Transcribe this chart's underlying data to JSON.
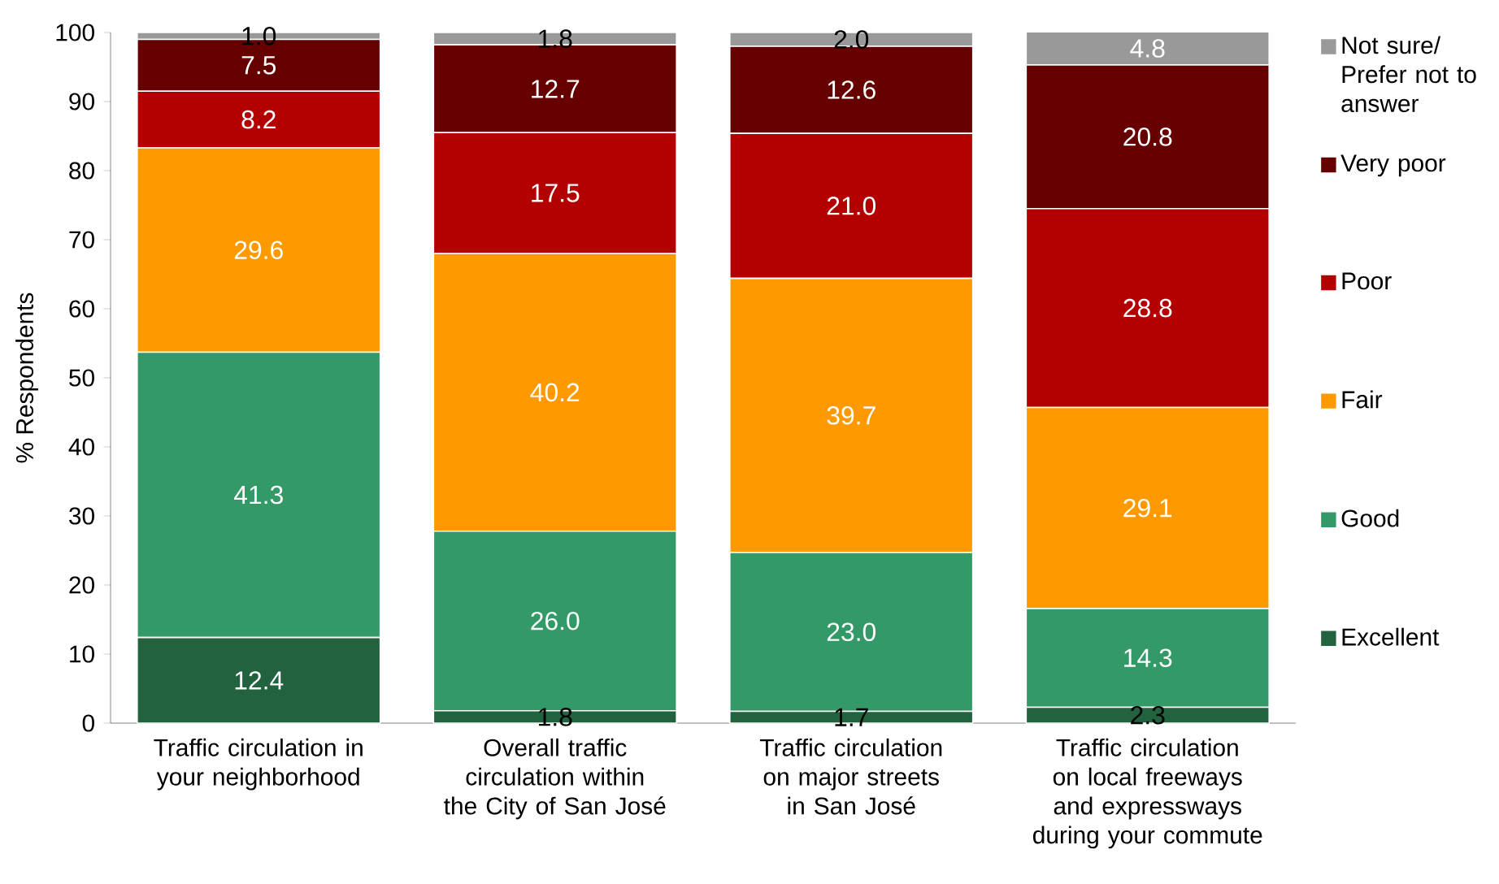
{
  "chart_data": {
    "type": "bar",
    "stacked": true,
    "ylabel": "% Respondents",
    "categories": [
      "Traffic circulation in your neighborhood",
      "Overall traffic circulation within the City of San José",
      "Traffic circulation on major streets in San José",
      "Traffic circulation on local freeways and expressways during your commute"
    ],
    "series": [
      {
        "name": "Excellent",
        "color": "#23623f",
        "values": [
          12.4,
          1.8,
          1.7,
          2.3
        ],
        "value_labels": [
          "12.4",
          "1.8",
          "1.7",
          "2.3"
        ]
      },
      {
        "name": "Good",
        "color": "#339966",
        "values": [
          41.3,
          26.0,
          23.0,
          14.3
        ],
        "value_labels": [
          "41.3",
          "26.0",
          "23.0",
          "14.3"
        ]
      },
      {
        "name": "Fair",
        "color": "#ff9900",
        "values": [
          29.6,
          40.2,
          39.7,
          29.1
        ],
        "value_labels": [
          "29.6",
          "40.2",
          "39.7",
          "29.1"
        ]
      },
      {
        "name": "Poor",
        "color": "#b30000",
        "values": [
          8.2,
          17.5,
          21.0,
          28.8
        ],
        "value_labels": [
          "8.2",
          "17.5",
          "21.0",
          "28.8"
        ]
      },
      {
        "name": "Very poor",
        "color": "#660000",
        "values": [
          7.5,
          12.7,
          12.6,
          20.8
        ],
        "value_labels": [
          "7.5",
          "12.7",
          "12.6",
          "20.8"
        ]
      },
      {
        "name": "Not sure/ Prefer not to answer",
        "color": "#999999",
        "values": [
          1.0,
          1.8,
          2.0,
          4.8
        ],
        "value_labels": [
          "1.0",
          "1.8",
          "2.0",
          "4.8"
        ]
      }
    ],
    "ylim": [
      0,
      100
    ],
    "yticks": [
      0,
      10,
      20,
      30,
      40,
      50,
      60,
      70,
      80,
      90,
      100
    ],
    "legend": "right"
  }
}
